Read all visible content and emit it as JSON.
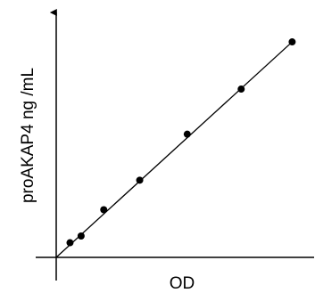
{
  "chart_data": {
    "type": "scatter",
    "title": "",
    "xlabel": "OD",
    "ylabel": "proAKAP4 ng /mL",
    "xlim": [
      0,
      1
    ],
    "ylim": [
      0,
      1
    ],
    "grid": false,
    "legend": "none",
    "trendline": true,
    "points": [
      {
        "x": 0.056,
        "y": 0.063
      },
      {
        "x": 0.101,
        "y": 0.092
      },
      {
        "x": 0.193,
        "y": 0.205
      },
      {
        "x": 0.339,
        "y": 0.332
      },
      {
        "x": 0.532,
        "y": 0.53
      },
      {
        "x": 0.751,
        "y": 0.724
      },
      {
        "x": 0.958,
        "y": 0.927
      }
    ],
    "fit_line": {
      "x": [
        0.0,
        0.958
      ],
      "y": [
        0.0,
        0.927
      ]
    },
    "colors": {
      "axis": "#000000",
      "point": "#000000",
      "line": "#000000"
    }
  }
}
